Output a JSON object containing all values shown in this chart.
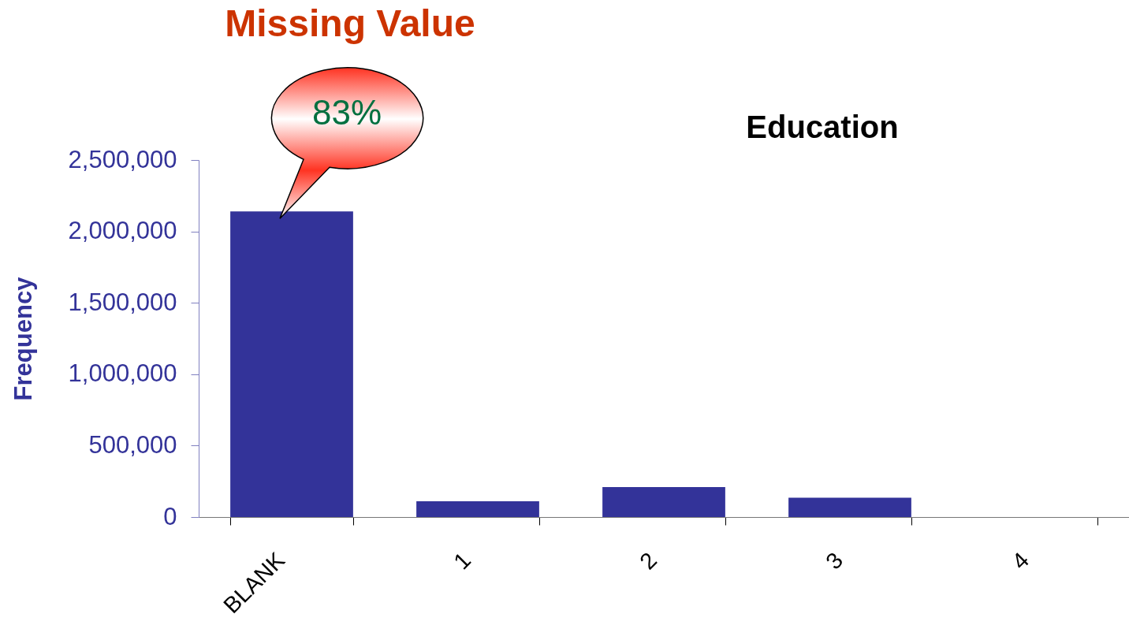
{
  "chart_data": {
    "type": "bar",
    "title": "Missing Value",
    "subtitle": "Education",
    "ylabel": "Frequency",
    "categories": [
      "BLANK",
      "1",
      "2",
      "3",
      "4"
    ],
    "values": [
      2140000,
      110000,
      210000,
      135000,
      0
    ],
    "color": "#333399",
    "ylim": [
      0,
      2500000
    ],
    "yticks": [
      0,
      {
        "value": 500000,
        "label": "500,000"
      },
      {
        "value": 1000000,
        "label": "1,000,000"
      },
      {
        "value": 1500000,
        "label": "1,500,000"
      },
      {
        "value": 2000000,
        "label": "2,000,000"
      },
      {
        "value": 2500000,
        "label": "2,500,000"
      }
    ],
    "annotations": [
      {
        "text": "83%",
        "x": "BLANK",
        "y": 2140000
      }
    ]
  }
}
